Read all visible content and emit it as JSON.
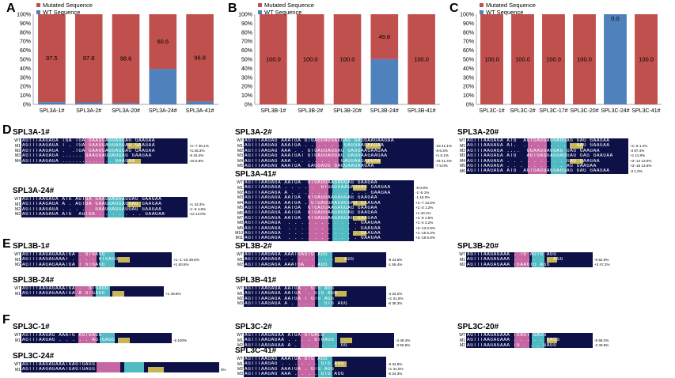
{
  "panels": {
    "A": "A",
    "B": "B",
    "C": "C",
    "D": "D",
    "E": "E",
    "F": "F"
  },
  "colors": {
    "mutated": "#c0504d",
    "wt": "#4f81bd",
    "seqbg": "#0d1147"
  },
  "chart_data": [
    {
      "type": "bar",
      "panel": "A",
      "stacked": true,
      "categories": [
        "SPL3A-1#",
        "SPL3A-2#",
        "SPL3A-20#",
        "SPL3A-24#",
        "SPL3A-41#"
      ],
      "series": [
        {
          "name": "Mutated Sequence",
          "values": [
            97.5,
            97.8,
            98.6,
            60.6,
            96.8
          ]
        },
        {
          "name": "WT Sequence",
          "values": [
            2.5,
            2.2,
            1.4,
            39.4,
            3.2
          ]
        }
      ],
      "labels": [
        "97.5",
        "97.8",
        "98.6",
        "60.6",
        "96.8"
      ],
      "legend": [
        "Mutated Sequence",
        "WT Sequence"
      ],
      "yticks": [
        "0%",
        "10%",
        "20%",
        "30%",
        "40%",
        "50%",
        "60%",
        "70%",
        "80%",
        "90%",
        "100%"
      ],
      "ylim": [
        0,
        100
      ]
    },
    {
      "type": "bar",
      "panel": "B",
      "stacked": true,
      "categories": [
        "SPL3B-1#",
        "SPL3B-2#",
        "SPL3B-20#",
        "SPL3B-24#",
        "SPL3B-41#"
      ],
      "series": [
        {
          "name": "Mutated Sequence",
          "values": [
            100.0,
            100.0,
            100.0,
            49.8,
            100.0
          ]
        },
        {
          "name": "WT Sequence",
          "values": [
            0,
            0,
            0,
            50.2,
            0
          ]
        }
      ],
      "labels": [
        "100.0",
        "100.0",
        "100.0",
        "49.8",
        "100.0"
      ],
      "legend": [
        "Mutated Sequence",
        "WT Sequence"
      ],
      "yticks": [
        "0%",
        "10%",
        "20%",
        "30%",
        "40%",
        "50%",
        "60%",
        "70%",
        "80%",
        "90%",
        "100%"
      ],
      "ylim": [
        0,
        100
      ]
    },
    {
      "type": "bar",
      "panel": "C",
      "stacked": true,
      "categories": [
        "SPL3C-1#",
        "SPL3C-2#",
        "SPL3C-17#",
        "SPL3C-20#",
        "SPL3C-24#",
        "SPL3C-41#"
      ],
      "series": [
        {
          "name": "Mutated Sequence",
          "values": [
            100.0,
            100.0,
            100.0,
            100.0,
            0.0,
            100.0
          ]
        },
        {
          "name": "WT Sequence",
          "values": [
            0,
            0,
            0,
            0,
            100.0,
            0
          ]
        }
      ],
      "labels": [
        "100.0",
        "100.0",
        "100.0",
        "100.0",
        "0.0",
        "100.0"
      ],
      "legend": [
        "Mutated Sequence",
        "WT Sequence"
      ],
      "yticks": [
        "0%",
        "10%",
        "20%",
        "30%",
        "40%",
        "50%",
        "60%",
        "70%",
        "80%",
        "90%",
        "100%"
      ],
      "ylim": [
        0,
        100
      ]
    }
  ],
  "alignments": {
    "D": [
      {
        "title": "SPL3A-1#",
        "rows": [
          {
            "lab": "WT",
            "seq": "AGTTTAAGAGA TGA TGA GAAGGAGGAGGAG GAAGAA",
            "note": ""
          },
          {
            "lab": "M1",
            "seq": "AGTTTAAGAGA T . TGA GAAGGAGGAGGAG GAAGAA",
            "note": "+1:-7 30.1%"
          },
          {
            "lab": "M2",
            "seq": "AGTTTAAGAGA .  .TGA GAAGGAGGAGGAG GAAGAA",
            "note": "+1:45.3%"
          },
          {
            "lab": "M3",
            "seq": "AGTTTAAGAGA ...... GAAGGAGGAGGAG GAAGAA",
            "note": "-6 16.4%"
          },
          {
            "lab": "M4",
            "seq": "AGTTTAAGAGA ............... GAAGAA",
            "note": "-16 5.8%"
          }
        ]
      },
      {
        "title": "SPL3A-2#",
        "rows": [
          {
            "lab": "WT",
            "seq": "AGTTTAAGAG AAATGA GTGAGGAGGAGGAG GAGGAAGAAGAA",
            "note": ""
          },
          {
            "lab": "M1",
            "seq": "AGTTTAAGAG AAATGA . . . . . . GAGGAAGAAGAA",
            "note": "-18 41.1%"
          },
          {
            "lab": "M2",
            "seq": "AGTTTAAGAG AAA . . GTGAGGAGGAG GAGGAAGAAGAA",
            "note": "-8 6.3%"
          },
          {
            "lab": "M3",
            "seq": "AGTTTAAGAG AAATGAT GTGAGGAGGAG GAGGAAGAAGAA",
            "note": "+1 6.1%"
          },
          {
            "lab": "M4",
            "seq": "AGTTTAAGAG AAA . . . . . . . GAGGAAGAAGAA",
            "note": "-44 41.4%"
          },
          {
            "lab": "M5",
            "seq": "AGTTTAAGAG AAATGA  GAGGAGG GAGGAAGAAGAA",
            "note": "-7 5.0%"
          }
        ]
      },
      {
        "title": "SPL3A-20#",
        "rows": [
          {
            "lab": "WT",
            "seq": "AGTTTAAGAGA ATG  AGTGAGGAGGAGGAG GAG GAAGAA",
            "note": ""
          },
          {
            "lab": "M1",
            "seq": "AGTTTAAGAGA AT.  . . . . . . . . GAG GAAGAA",
            "note": "+1:-8 1.2%"
          },
          {
            "lab": "M2",
            "seq": "AGTTTAAGAGA ....  GGAAGGAGGAG GAG GAAGAA",
            "note": "-3 67.4%"
          },
          {
            "lab": "M3",
            "seq": "AGTTTAAGAGA ATG   AGTGAGGAGGAGGAG GAG GAAGAA",
            "note": "+1 11.8%"
          },
          {
            "lab": "M4",
            "seq": "AGTTTAAGAGA . . . . . . . . . GAG GAAGAA",
            "note": "+3:-14 13.6%"
          },
          {
            "lab": "M5",
            "seq": "AGTTTAAGAGA . . . . . . . . . AG GAAGAA",
            "note": "+3:-16 13.5%"
          },
          {
            "lab": "M6",
            "seq": "AGTTTAAGAGA ATG  AGTGAGGAGGAGGAG GAG GAAGAA",
            "note": "-3 1.0%"
          }
        ]
      },
      {
        "title": "SPL3A-24#",
        "rows": [
          {
            "lab": "WT",
            "seq": "AGTTTAAGAGA ATG AGTGA GAAGGAGGAGGAG GAAGAA",
            "note": ""
          },
          {
            "lab": "M1",
            "seq": "AGTTTAAGAGA A . AGTGA GAAGGAGGAGGAG GAAGAA",
            "note": "+1 42.3%"
          },
          {
            "lab": "M2",
            "seq": "AGTTTAAGAGA . . . . . GAAGGAGGAGGAG GAAGAA",
            "note": "-1:-8 4.6%"
          },
          {
            "lab": "M3",
            "seq": "AGTTTAAGAGA ATG  AGTGA . . . . . . . GAAGAA",
            "note": "-12 14.0%"
          }
        ]
      },
      {
        "title": "SPL3A-41#",
        "rows": [
          {
            "lab": "WT",
            "seq": "AGTTTAAGAGA AATGA  GTGAGGAAGAGGAG GAAGAA",
            "note": ""
          },
          {
            "lab": "M1",
            "seq": "AGTTTAAGAGA . . . . .  GTGAGGAAGAGGAG GAAGAA",
            "note": "-8 0.8%"
          },
          {
            "lab": "M2",
            "seq": "AGTTTAAGAGA A . . . . . . . . . . . . GAAGAA",
            "note": "-1:-8 1%"
          },
          {
            "lab": "M3",
            "seq": "AGTTTAAGAGA AATGA  GTGAGGAAGAGGAG GAAGAA",
            "note": "-1 16.0%"
          },
          {
            "lab": "M4",
            "seq": "AGTTTAAGAGA AATGA . GTGAGGAAGAGGAG GAAGAA",
            "note": "+1:-7 13.6%"
          },
          {
            "lab": "M5",
            "seq": "AGTTTAAGAGA AATGA  GTGAGGAAGAGGAG GAAGAA",
            "note": "+1:-3 1.2%"
          },
          {
            "lab": "M6",
            "seq": "AGTTTAAGAGA AATGA  GTGAGGAAGAGGAG GAAGAA",
            "note": "+1 40.1%"
          },
          {
            "lab": "M7",
            "seq": "AGTTTAAGAGA AATGA  GTGAGGAAGAGGAG GAAGAA",
            "note": "+1:-9 1.5%"
          },
          {
            "lab": "M8",
            "seq": "AGTTTAAGAGA  . . . . . . . . . . . GAAGAA",
            "note": "+1:-4 2.2%"
          },
          {
            "lab": "M9",
            "seq": "AGTTTAAGAGA  . . . . . . . . . . . GAAGAA",
            "note": "+2:-13 0.8%"
          },
          {
            "lab": "M10",
            "seq": "AGTTTAAGAGA  . . . . . . . . . . . GAAGAA",
            "note": "+1:-15 6.3%"
          },
          {
            "lab": "M11",
            "seq": "AGTTTAAGAGA  . . . . . . . . . . . GAAGAA",
            "note": "+3:-18 5.9%"
          }
        ]
      }
    ],
    "E": [
      {
        "title": "SPL3B-1#",
        "rows": [
          {
            "lab": "WT",
            "seq": "AGTTTAAGAGAAATGA . GTGAGG",
            "note": ""
          },
          {
            "lab": "M1",
            "seq": "AGTTTAAGAGAAAT . . . . GTGAGG",
            "note": "+1:-1:-16 49.8%"
          },
          {
            "lab": "M2",
            "seq": "AGTTTAAGAGAAATGA T GTGAGG",
            "note": "+1 50.5%"
          }
        ]
      },
      {
        "title": "SPL3B-2#",
        "rows": [
          {
            "lab": "WT",
            "seq": "AGTTTAAGAGA AAATGAGTG AGG",
            "note": ""
          },
          {
            "lab": "M1",
            "seq": "AGTTTAAGAGA . . . . . . . . . AGG",
            "note": "-8 44.6%"
          },
          {
            "lab": "M2",
            "seq": "AGTTTAAGAGA AAATGA  . AGG",
            "note": "-1 55.4%"
          }
        ]
      },
      {
        "title": "SPL3B-20#",
        "rows": [
          {
            "lab": "WT",
            "seq": "AGTTTAAGAGAAA . TG AGTG AGG",
            "note": ""
          },
          {
            "lab": "M1",
            "seq": "AGTTTAAGAGAAA . . . . . . AGG",
            "note": "-6 52.9%"
          },
          {
            "lab": "M2",
            "seq": "AGTTTAAGAGAAA TGAAGTG AGG",
            "note": "+3 47.2%"
          }
        ]
      },
      {
        "title": "SPL3B-24#",
        "rows": [
          {
            "lab": "WT",
            "seq": "AGTTTAAGAGAAATGA .  GTGAGG",
            "note": ""
          },
          {
            "lab": "M1",
            "seq": "AGTTTAAGAGAAATGA A GTGAGG",
            "note": "+1 49.8%"
          }
        ]
      },
      {
        "title": "SPL3B-41#",
        "rows": [
          {
            "lab": "WT",
            "seq": "AGTTTAAGAGA AATGA . GTG AGG",
            "note": ""
          },
          {
            "lab": "M1",
            "seq": "AGTTTAAGAGA AATGA  . GTG AGG",
            "note": "-4 33.2%"
          },
          {
            "lab": "M2",
            "seq": "AGTTTAAGAGA AATGA T GTG AGG",
            "note": "+1 31.5%"
          },
          {
            "lab": "M3",
            "seq": "AGTTTAAGAGA A . . . . . GTG AGG",
            "note": "-6 35.3%"
          }
        ]
      }
    ],
    "F": [
      {
        "title": "SPL3C-1#",
        "rows": [
          {
            "lab": "WT",
            "seq": "AGTTTAAGAG AAATG AGTGAGG",
            "note": ""
          },
          {
            "lab": "M1",
            "seq": "AGTTTAAGAG . . . . . AGTGAGG",
            "note": "-5 100%"
          }
        ]
      },
      {
        "title": "SPL3C-2#",
        "rows": [
          {
            "lab": "WT",
            "seq": "AGTTTAAGAGAA ATGA GTGAGG",
            "note": ""
          },
          {
            "lab": "M1",
            "seq": "AGTTTAAGAGAA . . . . GTGAGG",
            "note": "-4 49.4%"
          },
          {
            "lab": "M2",
            "seq": "AGTTTAAGAGAA A . . . . . . . GG",
            "note": "-3 50.6%"
          }
        ]
      },
      {
        "title": "SPL3C-20#",
        "rows": [
          {
            "lab": "WT",
            "seq": "AGTTTAAGAGAAA TGAGT GAGG",
            "note": ""
          },
          {
            "lab": "M1",
            "seq": "AGTTTAAGAGAAA . . . . . GAGG",
            "note": "-5 59.2%"
          },
          {
            "lab": "M2",
            "seq": "AGTTTAAGAGAAA TG . . . GAGG",
            "note": "-3 40.8%"
          }
        ]
      },
      {
        "title": "SPL3C-24#",
        "rows": [
          {
            "lab": "WT",
            "seq": "AGTTTAAGAGAAATGAGTGAGG",
            "note": ""
          },
          {
            "lab": "M1",
            "seq": "AGTTTAAGAGAAATGAGTGAGG",
            "note": "0%"
          }
        ]
      },
      {
        "title": "SPL3C-41#",
        "rows": [
          {
            "lab": "WT",
            "seq": "AGTTTAAGAG AAATGA GTG AGG",
            "note": ""
          },
          {
            "lab": "M1",
            "seq": "AGTTTAAGAG . . . . . . GTG AGG",
            "note": "-6 34.8%"
          },
          {
            "lab": "M2",
            "seq": "AGTTTAAGAG AAATGA . GTG AGG",
            "note": "+1 31.0%"
          },
          {
            "lab": "M3",
            "seq": "AGTTTAAGAG AAA . . . . GTG AGG",
            "note": "-6 34.3%"
          }
        ]
      }
    ]
  }
}
